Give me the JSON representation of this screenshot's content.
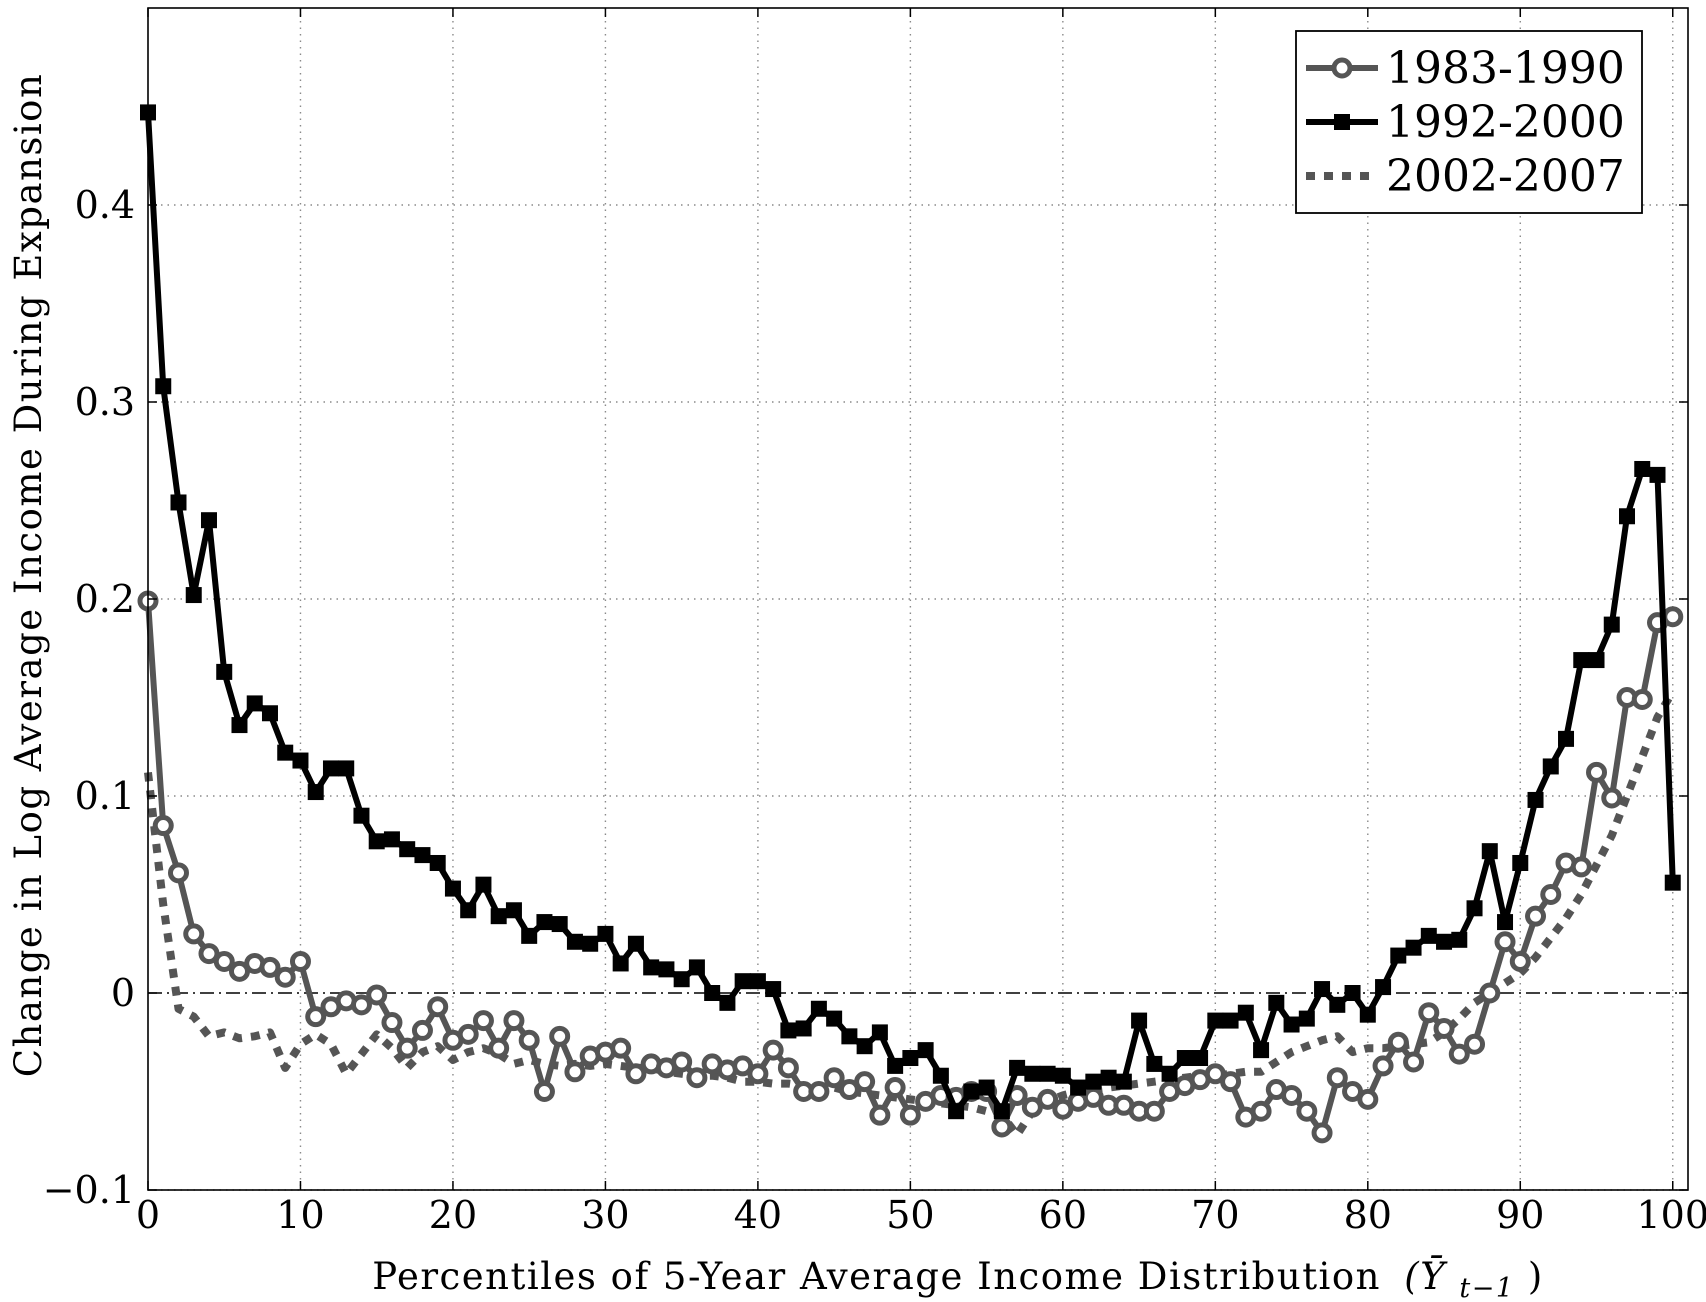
{
  "chart_data": {
    "type": "line",
    "xlabel": "Percentiles of 5-Year Average Income Distribution",
    "xlabel_symbol": "(Ȳ",
    "xlabel_subscript": "t−1",
    "xlabel_close": ")",
    "ylabel": "Change in Log Average Income During Expansion",
    "xlim": [
      0,
      101
    ],
    "ylim": [
      -0.1,
      0.5
    ],
    "grid": true,
    "legend_position": "top-right",
    "zero_line": true,
    "x_ticks": [
      0,
      10,
      20,
      30,
      40,
      50,
      60,
      70,
      80,
      90,
      100
    ],
    "y_ticks": [
      -0.1,
      0,
      0.1,
      0.2,
      0.3,
      0.4
    ],
    "x_tick_labels": [
      "0",
      "10",
      "20",
      "30",
      "40",
      "50",
      "60",
      "70",
      "80",
      "90",
      "100"
    ],
    "y_tick_labels": [
      "−0.1",
      "0",
      "0.1",
      "0.2",
      "0.3",
      "0.4"
    ],
    "series": [
      {
        "name": "1983-1990",
        "color": "#555555",
        "style": "solid-circle",
        "x": [
          0,
          1,
          2,
          3,
          4,
          5,
          6,
          7,
          8,
          9,
          10,
          11,
          12,
          13,
          14,
          15,
          16,
          17,
          18,
          19,
          20,
          21,
          22,
          23,
          24,
          25,
          26,
          27,
          28,
          29,
          30,
          31,
          32,
          33,
          34,
          35,
          36,
          37,
          38,
          39,
          40,
          41,
          42,
          43,
          44,
          45,
          46,
          47,
          48,
          49,
          50,
          51,
          52,
          53,
          54,
          55,
          56,
          57,
          58,
          59,
          60,
          61,
          62,
          63,
          64,
          65,
          66,
          67,
          68,
          69,
          70,
          71,
          72,
          73,
          74,
          75,
          76,
          77,
          78,
          79,
          80,
          81,
          82,
          83,
          84,
          85,
          86,
          87,
          88,
          89,
          90,
          91,
          92,
          93,
          94,
          95,
          96,
          97,
          98,
          99,
          100
        ],
        "y": [
          0.199,
          0.085,
          0.061,
          0.03,
          0.02,
          0.016,
          0.011,
          0.015,
          0.013,
          0.008,
          0.016,
          -0.012,
          -0.007,
          -0.004,
          -0.006,
          -0.001,
          -0.015,
          -0.028,
          -0.019,
          -0.007,
          -0.024,
          -0.021,
          -0.014,
          -0.028,
          -0.014,
          -0.024,
          -0.05,
          -0.022,
          -0.04,
          -0.032,
          -0.03,
          -0.028,
          -0.041,
          -0.036,
          -0.038,
          -0.035,
          -0.043,
          -0.036,
          -0.039,
          -0.037,
          -0.041,
          -0.029,
          -0.038,
          -0.05,
          -0.05,
          -0.043,
          -0.049,
          -0.045,
          -0.062,
          -0.048,
          -0.062,
          -0.055,
          -0.052,
          -0.053,
          -0.05,
          -0.05,
          -0.068,
          -0.052,
          -0.058,
          -0.054,
          -0.059,
          -0.055,
          -0.053,
          -0.057,
          -0.057,
          -0.06,
          -0.06,
          -0.05,
          -0.047,
          -0.044,
          -0.041,
          -0.045,
          -0.063,
          -0.06,
          -0.049,
          -0.052,
          -0.06,
          -0.071,
          -0.043,
          -0.05,
          -0.054,
          -0.037,
          -0.025,
          -0.035,
          -0.01,
          -0.018,
          -0.031,
          -0.026,
          0,
          0.026,
          0.016,
          0.039,
          0.05,
          0.066,
          0.064,
          0.112,
          0.099,
          0.15,
          0.149,
          0.188,
          0.191
        ]
      },
      {
        "name": "1992-2000",
        "color": "#000000",
        "style": "solid-square",
        "x": [
          0,
          1,
          2,
          3,
          4,
          5,
          6,
          7,
          8,
          9,
          10,
          11,
          12,
          13,
          14,
          15,
          16,
          17,
          18,
          19,
          20,
          21,
          22,
          23,
          24,
          25,
          26,
          27,
          28,
          29,
          30,
          31,
          32,
          33,
          34,
          35,
          36,
          37,
          38,
          39,
          40,
          41,
          42,
          43,
          44,
          45,
          46,
          47,
          48,
          49,
          50,
          51,
          52,
          53,
          54,
          55,
          56,
          57,
          58,
          59,
          60,
          61,
          62,
          63,
          64,
          65,
          66,
          67,
          68,
          69,
          70,
          71,
          72,
          73,
          74,
          75,
          76,
          77,
          78,
          79,
          80,
          81,
          82,
          83,
          84,
          85,
          86,
          87,
          88,
          89,
          90,
          91,
          92,
          93,
          94,
          95,
          96,
          97,
          98,
          99,
          100
        ],
        "y": [
          0.447,
          0.308,
          0.249,
          0.202,
          0.24,
          0.163,
          0.136,
          0.147,
          0.142,
          0.122,
          0.118,
          0.102,
          0.114,
          0.114,
          0.09,
          0.077,
          0.078,
          0.073,
          0.07,
          0.066,
          0.053,
          0.042,
          0.055,
          0.039,
          0.042,
          0.029,
          0.036,
          0.035,
          0.026,
          0.025,
          0.03,
          0.015,
          0.025,
          0.013,
          0.012,
          0.007,
          0.013,
          0,
          -0.005,
          0.006,
          0.006,
          0.002,
          -0.019,
          -0.018,
          -0.008,
          -0.013,
          -0.022,
          -0.027,
          -0.02,
          -0.037,
          -0.033,
          -0.029,
          -0.042,
          -0.06,
          -0.05,
          -0.048,
          -0.06,
          -0.038,
          -0.041,
          -0.041,
          -0.042,
          -0.048,
          -0.045,
          -0.043,
          -0.045,
          -0.014,
          -0.036,
          -0.041,
          -0.033,
          -0.033,
          -0.014,
          -0.014,
          -0.01,
          -0.029,
          -0.005,
          -0.016,
          -0.013,
          0.002,
          -0.006,
          0,
          -0.011,
          0.003,
          0.019,
          0.023,
          0.029,
          0.026,
          0.027,
          0.043,
          0.072,
          0.036,
          0.066,
          0.098,
          0.115,
          0.129,
          0.169,
          0.169,
          0.187,
          0.242,
          0.266,
          0.263,
          0.056
        ]
      },
      {
        "name": "2002-2007",
        "color": "#555555",
        "style": "dotted",
        "x": [
          0,
          1,
          2,
          3,
          4,
          5,
          6,
          7,
          8,
          9,
          10,
          11,
          12,
          13,
          14,
          15,
          16,
          17,
          18,
          19,
          20,
          21,
          22,
          23,
          24,
          25,
          26,
          27,
          28,
          29,
          30,
          31,
          32,
          33,
          34,
          35,
          36,
          37,
          38,
          39,
          40,
          41,
          42,
          43,
          44,
          45,
          46,
          47,
          48,
          49,
          50,
          51,
          52,
          53,
          54,
          55,
          56,
          57,
          58,
          59,
          60,
          61,
          62,
          63,
          64,
          65,
          66,
          67,
          68,
          69,
          70,
          71,
          72,
          73,
          74,
          75,
          76,
          77,
          78,
          79,
          80,
          81,
          82,
          83,
          84,
          85,
          86,
          87,
          88,
          89,
          90,
          91,
          92,
          93,
          94,
          95,
          96,
          97,
          98,
          99,
          100
        ],
        "y": [
          0.112,
          0.045,
          -0.008,
          -0.012,
          -0.022,
          -0.02,
          -0.023,
          -0.022,
          -0.02,
          -0.038,
          -0.026,
          -0.021,
          -0.026,
          -0.041,
          -0.031,
          -0.021,
          -0.028,
          -0.038,
          -0.03,
          -0.027,
          -0.034,
          -0.03,
          -0.028,
          -0.031,
          -0.036,
          -0.034,
          -0.036,
          -0.037,
          -0.036,
          -0.037,
          -0.036,
          -0.037,
          -0.038,
          -0.038,
          -0.04,
          -0.041,
          -0.042,
          -0.042,
          -0.043,
          -0.045,
          -0.045,
          -0.046,
          -0.046,
          -0.047,
          -0.048,
          -0.048,
          -0.05,
          -0.051,
          -0.052,
          -0.053,
          -0.054,
          -0.055,
          -0.056,
          -0.057,
          -0.058,
          -0.06,
          -0.062,
          -0.072,
          -0.06,
          -0.055,
          -0.052,
          -0.05,
          -0.049,
          -0.048,
          -0.047,
          -0.046,
          -0.045,
          -0.044,
          -0.043,
          -0.042,
          -0.042,
          -0.041,
          -0.04,
          -0.04,
          -0.035,
          -0.03,
          -0.027,
          -0.024,
          -0.022,
          -0.03,
          -0.028,
          -0.028,
          -0.027,
          -0.026,
          -0.025,
          -0.02,
          -0.013,
          -0.005,
          0,
          0.005,
          0.01,
          0.018,
          0.028,
          0.038,
          0.05,
          0.065,
          0.08,
          0.1,
          0.12,
          0.14,
          0.153
        ]
      }
    ]
  }
}
